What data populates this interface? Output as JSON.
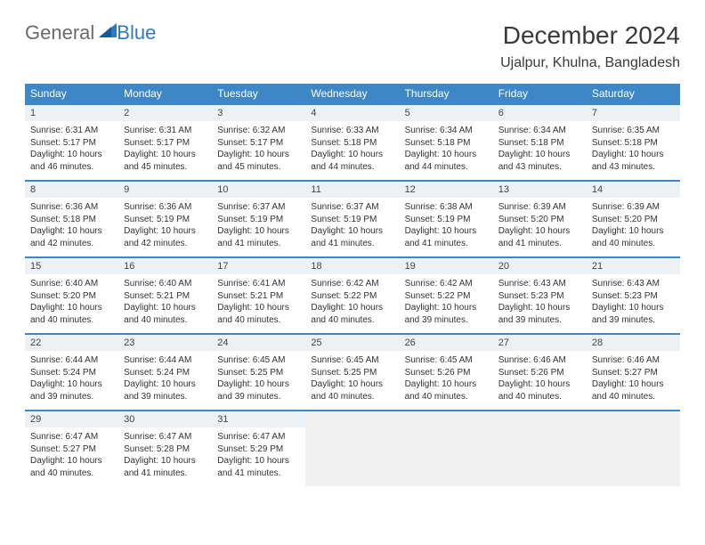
{
  "logo": {
    "general": "General",
    "blue": "Blue"
  },
  "title": "December 2024",
  "location": "Ujalpur, Khulna, Bangladesh",
  "colors": {
    "header_bg": "#3d87c7",
    "header_text": "#ffffff",
    "daynum_bg": "#eef1f4",
    "row_divider": "#3d87c7",
    "logo_gray": "#6b6b6b",
    "logo_blue": "#2f7ac0"
  },
  "day_headers": [
    "Sunday",
    "Monday",
    "Tuesday",
    "Wednesday",
    "Thursday",
    "Friday",
    "Saturday"
  ],
  "days": [
    {
      "n": 1,
      "sr": "6:31 AM",
      "ss": "5:17 PM",
      "dl": "10 hours and 46 minutes."
    },
    {
      "n": 2,
      "sr": "6:31 AM",
      "ss": "5:17 PM",
      "dl": "10 hours and 45 minutes."
    },
    {
      "n": 3,
      "sr": "6:32 AM",
      "ss": "5:17 PM",
      "dl": "10 hours and 45 minutes."
    },
    {
      "n": 4,
      "sr": "6:33 AM",
      "ss": "5:18 PM",
      "dl": "10 hours and 44 minutes."
    },
    {
      "n": 5,
      "sr": "6:34 AM",
      "ss": "5:18 PM",
      "dl": "10 hours and 44 minutes."
    },
    {
      "n": 6,
      "sr": "6:34 AM",
      "ss": "5:18 PM",
      "dl": "10 hours and 43 minutes."
    },
    {
      "n": 7,
      "sr": "6:35 AM",
      "ss": "5:18 PM",
      "dl": "10 hours and 43 minutes."
    },
    {
      "n": 8,
      "sr": "6:36 AM",
      "ss": "5:18 PM",
      "dl": "10 hours and 42 minutes."
    },
    {
      "n": 9,
      "sr": "6:36 AM",
      "ss": "5:19 PM",
      "dl": "10 hours and 42 minutes."
    },
    {
      "n": 10,
      "sr": "6:37 AM",
      "ss": "5:19 PM",
      "dl": "10 hours and 41 minutes."
    },
    {
      "n": 11,
      "sr": "6:37 AM",
      "ss": "5:19 PM",
      "dl": "10 hours and 41 minutes."
    },
    {
      "n": 12,
      "sr": "6:38 AM",
      "ss": "5:19 PM",
      "dl": "10 hours and 41 minutes."
    },
    {
      "n": 13,
      "sr": "6:39 AM",
      "ss": "5:20 PM",
      "dl": "10 hours and 41 minutes."
    },
    {
      "n": 14,
      "sr": "6:39 AM",
      "ss": "5:20 PM",
      "dl": "10 hours and 40 minutes."
    },
    {
      "n": 15,
      "sr": "6:40 AM",
      "ss": "5:20 PM",
      "dl": "10 hours and 40 minutes."
    },
    {
      "n": 16,
      "sr": "6:40 AM",
      "ss": "5:21 PM",
      "dl": "10 hours and 40 minutes."
    },
    {
      "n": 17,
      "sr": "6:41 AM",
      "ss": "5:21 PM",
      "dl": "10 hours and 40 minutes."
    },
    {
      "n": 18,
      "sr": "6:42 AM",
      "ss": "5:22 PM",
      "dl": "10 hours and 40 minutes."
    },
    {
      "n": 19,
      "sr": "6:42 AM",
      "ss": "5:22 PM",
      "dl": "10 hours and 39 minutes."
    },
    {
      "n": 20,
      "sr": "6:43 AM",
      "ss": "5:23 PM",
      "dl": "10 hours and 39 minutes."
    },
    {
      "n": 21,
      "sr": "6:43 AM",
      "ss": "5:23 PM",
      "dl": "10 hours and 39 minutes."
    },
    {
      "n": 22,
      "sr": "6:44 AM",
      "ss": "5:24 PM",
      "dl": "10 hours and 39 minutes."
    },
    {
      "n": 23,
      "sr": "6:44 AM",
      "ss": "5:24 PM",
      "dl": "10 hours and 39 minutes."
    },
    {
      "n": 24,
      "sr": "6:45 AM",
      "ss": "5:25 PM",
      "dl": "10 hours and 39 minutes."
    },
    {
      "n": 25,
      "sr": "6:45 AM",
      "ss": "5:25 PM",
      "dl": "10 hours and 40 minutes."
    },
    {
      "n": 26,
      "sr": "6:45 AM",
      "ss": "5:26 PM",
      "dl": "10 hours and 40 minutes."
    },
    {
      "n": 27,
      "sr": "6:46 AM",
      "ss": "5:26 PM",
      "dl": "10 hours and 40 minutes."
    },
    {
      "n": 28,
      "sr": "6:46 AM",
      "ss": "5:27 PM",
      "dl": "10 hours and 40 minutes."
    },
    {
      "n": 29,
      "sr": "6:47 AM",
      "ss": "5:27 PM",
      "dl": "10 hours and 40 minutes."
    },
    {
      "n": 30,
      "sr": "6:47 AM",
      "ss": "5:28 PM",
      "dl": "10 hours and 41 minutes."
    },
    {
      "n": 31,
      "sr": "6:47 AM",
      "ss": "5:29 PM",
      "dl": "10 hours and 41 minutes."
    }
  ],
  "labels": {
    "sunrise": "Sunrise:",
    "sunset": "Sunset:",
    "daylight": "Daylight:"
  },
  "layout": {
    "first_day_column": 0,
    "total_days": 31,
    "columns": 7
  }
}
